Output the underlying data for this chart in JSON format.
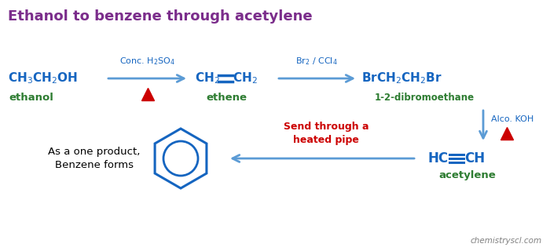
{
  "title": "Ethanol to benzene through acetylene",
  "title_color": "#7B2D8B",
  "title_fontsize": 13,
  "background_color": "#ffffff",
  "arrow_color": "#5B9BD5",
  "molecule_color": "#1565C0",
  "label_color": "#2E7D32",
  "red_color": "#CC0000",
  "reagent_color": "#1565C0",
  "watermark": "chemistryscl.com",
  "molecules": {
    "ethanol_label": "ethanol",
    "ethene_label": "ethene",
    "dibromo_label": "1-2-dibromoethane",
    "acetylene_label": "acetylene",
    "benzene_label": "As a one product,\nBenzene forms",
    "heated_pipe": "Send through a\nheated pipe"
  },
  "reagents": {
    "r1": "Conc. H$_2$SO$_4$",
    "r2": "Br$_2$ / CCl$_4$",
    "r3": "Alco. KOH"
  }
}
